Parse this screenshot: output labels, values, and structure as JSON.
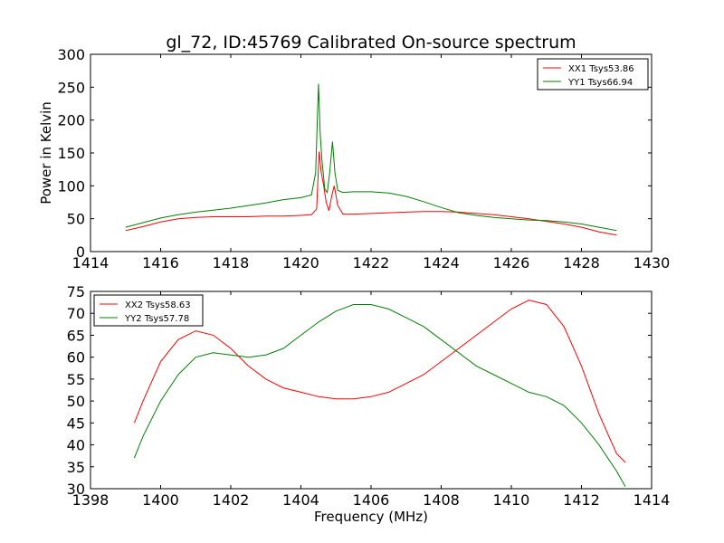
{
  "chart_data": [
    {
      "type": "line",
      "title": "gl_72, ID:45769 Calibrated On-source spectrum",
      "xlabel": "",
      "ylabel": "Power in Kelvin",
      "xlim": [
        1414,
        1430
      ],
      "ylim": [
        0,
        300
      ],
      "xticks": [
        1414,
        1416,
        1418,
        1420,
        1422,
        1424,
        1426,
        1428,
        1430
      ],
      "yticks": [
        0,
        50,
        100,
        150,
        200,
        250,
        300
      ],
      "legend_position": "top-right",
      "series": [
        {
          "name": "XX1 Tsys53.86",
          "color": "#ff0000",
          "x": [
            1415.0,
            1415.5,
            1416.0,
            1416.5,
            1417.0,
            1417.5,
            1418.0,
            1418.5,
            1419.0,
            1419.5,
            1420.0,
            1420.3,
            1420.45,
            1420.52,
            1420.58,
            1420.65,
            1420.72,
            1420.8,
            1420.88,
            1420.95,
            1421.05,
            1421.2,
            1421.5,
            1422.0,
            1422.5,
            1423.0,
            1423.5,
            1424.0,
            1424.5,
            1425.0,
            1425.5,
            1426.0,
            1426.5,
            1427.0,
            1427.5,
            1428.0,
            1428.5,
            1429.0
          ],
          "y": [
            32,
            38,
            45,
            50,
            52,
            53,
            53,
            53,
            54,
            54,
            55,
            56,
            65,
            152,
            120,
            100,
            75,
            62,
            85,
            100,
            70,
            57,
            57,
            58,
            59,
            60,
            61,
            61,
            60,
            58,
            56,
            53,
            50,
            46,
            42,
            37,
            30,
            25
          ]
        },
        {
          "name": "YY1 Tsys66.94",
          "color": "#008000",
          "x": [
            1415.0,
            1415.5,
            1416.0,
            1416.5,
            1417.0,
            1417.5,
            1418.0,
            1418.5,
            1419.0,
            1419.5,
            1420.0,
            1420.3,
            1420.42,
            1420.5,
            1420.55,
            1420.6,
            1420.68,
            1420.75,
            1420.82,
            1420.9,
            1420.97,
            1421.05,
            1421.2,
            1421.5,
            1422.0,
            1422.5,
            1423.0,
            1423.5,
            1424.0,
            1424.5,
            1425.0,
            1425.5,
            1426.0,
            1426.5,
            1427.0,
            1427.5,
            1428.0,
            1428.5,
            1429.0
          ],
          "y": [
            37,
            44,
            51,
            56,
            60,
            63,
            66,
            70,
            74,
            79,
            82,
            86,
            120,
            255,
            180,
            140,
            95,
            90,
            120,
            167,
            120,
            93,
            90,
            91,
            91,
            89,
            84,
            76,
            67,
            59,
            55,
            52,
            50,
            48,
            47,
            45,
            42,
            37,
            32
          ]
        }
      ]
    },
    {
      "type": "line",
      "title": "",
      "xlabel": "Frequency (MHz)",
      "ylabel": "",
      "xlim": [
        1398,
        1414
      ],
      "ylim": [
        30,
        75
      ],
      "xticks": [
        1398,
        1400,
        1402,
        1404,
        1406,
        1408,
        1410,
        1412,
        1414
      ],
      "yticks": [
        30,
        35,
        40,
        45,
        50,
        55,
        60,
        65,
        70,
        75
      ],
      "legend_position": "top-left",
      "series": [
        {
          "name": "XX2 Tsys58.63",
          "color": "#ff0000",
          "x": [
            1399.25,
            1399.5,
            1400.0,
            1400.5,
            1401.0,
            1401.5,
            1402.0,
            1402.5,
            1403.0,
            1403.5,
            1404.0,
            1404.5,
            1405.0,
            1405.5,
            1406.0,
            1406.5,
            1407.0,
            1407.5,
            1408.0,
            1408.5,
            1409.0,
            1409.5,
            1410.0,
            1410.5,
            1411.0,
            1411.5,
            1412.0,
            1412.5,
            1413.0,
            1413.25
          ],
          "y": [
            45,
            50,
            59,
            64,
            66,
            65,
            62,
            58,
            55,
            53,
            52,
            51,
            50.5,
            50.5,
            51,
            52,
            54,
            56,
            59,
            62,
            65,
            68,
            71,
            73,
            72,
            67,
            58,
            47,
            38,
            36
          ]
        },
        {
          "name": "YY2 Tsys57.78",
          "color": "#008000",
          "x": [
            1399.25,
            1399.5,
            1400.0,
            1400.5,
            1401.0,
            1401.5,
            1402.0,
            1402.5,
            1403.0,
            1403.5,
            1404.0,
            1404.5,
            1405.0,
            1405.5,
            1406.0,
            1406.5,
            1407.0,
            1407.5,
            1408.0,
            1408.5,
            1409.0,
            1409.5,
            1410.0,
            1410.5,
            1411.0,
            1411.5,
            1412.0,
            1412.5,
            1413.0,
            1413.25
          ],
          "y": [
            37,
            42,
            50,
            56,
            60,
            61,
            60.5,
            60,
            60.5,
            62,
            65,
            68,
            70.5,
            72,
            72,
            71,
            69,
            67,
            64,
            61,
            58,
            56,
            54,
            52,
            51,
            49,
            45,
            40,
            34,
            30.5
          ]
        }
      ]
    }
  ]
}
